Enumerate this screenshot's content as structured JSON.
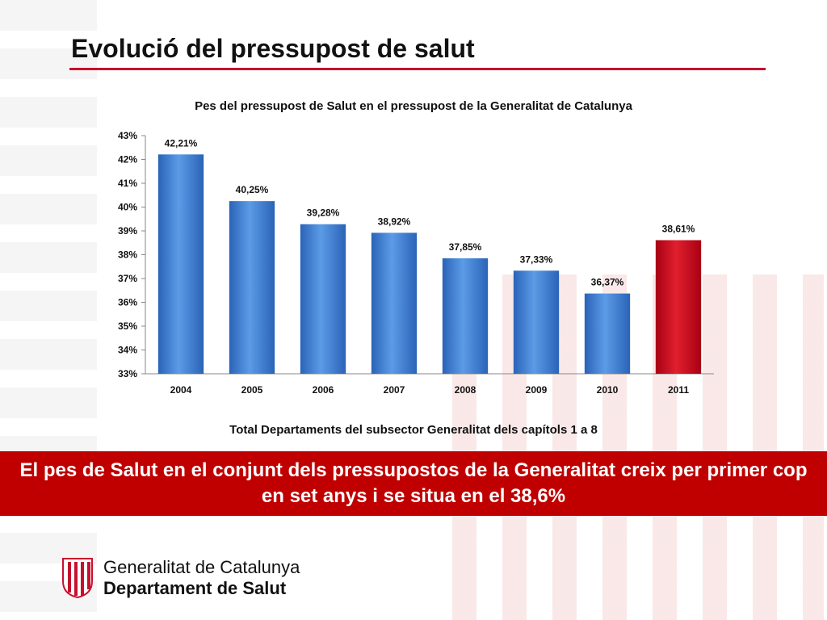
{
  "slide": {
    "title": "Evolució del pressupost de salut",
    "banner_text": "El pes de Salut en el conjunt dels pressupostos de la Generalitat creix per primer cop en set anys i se situa en el 38,6%"
  },
  "footer": {
    "org_line1": "Generalitat de Catalunya",
    "org_line2": "Departament de Salut"
  },
  "colors": {
    "accent": "#c8102e",
    "bar_blue": "#3a7bd5",
    "bar_red": "#d0021b",
    "banner": "#c00000"
  },
  "chart_data": {
    "type": "bar",
    "title": "Pes del pressupost de Salut en el pressupost de la Generalitat de Catalunya",
    "subtitle": "Total Departaments del subsector Generalitat dels capítols 1 a 8",
    "categories": [
      "2004",
      "2005",
      "2006",
      "2007",
      "2008",
      "2009",
      "2010",
      "2011"
    ],
    "values": [
      42.21,
      40.25,
      39.28,
      38.92,
      37.85,
      37.33,
      36.37,
      38.61
    ],
    "value_labels": [
      "42,21%",
      "40,25%",
      "39,28%",
      "38,92%",
      "37,85%",
      "37,33%",
      "36,37%",
      "38,61%"
    ],
    "highlight_index": 7,
    "ylim": [
      33,
      43
    ],
    "yticks": [
      33,
      34,
      35,
      36,
      37,
      38,
      39,
      40,
      41,
      42,
      43
    ],
    "ytick_labels": [
      "33%",
      "34%",
      "35%",
      "36%",
      "37%",
      "38%",
      "39%",
      "40%",
      "41%",
      "42%",
      "43%"
    ],
    "grid": false,
    "legend": "none"
  }
}
